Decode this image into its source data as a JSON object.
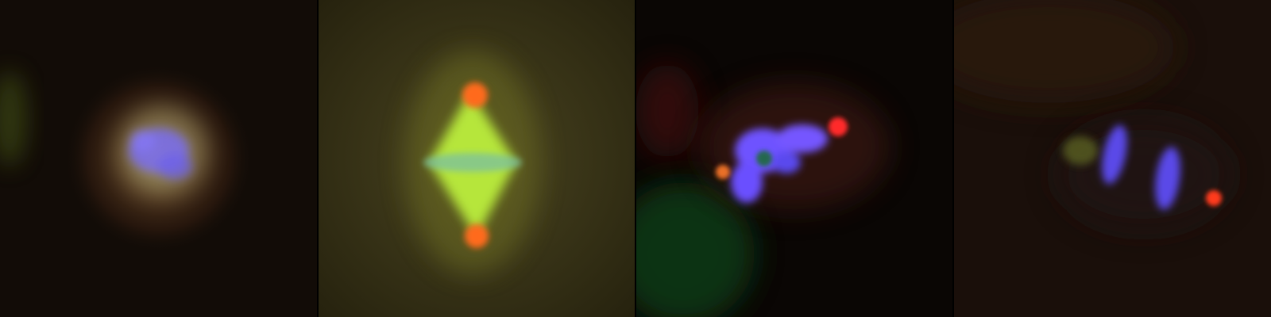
{
  "figure": {
    "panel_count": 4,
    "channels": {
      "dna": "#6a5cff",
      "tubulin": "#b8e23a",
      "centrosome": "#ff3a1e"
    },
    "panels": [
      {
        "id": "panel-1",
        "background": "#120c07"
      },
      {
        "id": "panel-2",
        "background": "#2f2a12"
      },
      {
        "id": "panel-3",
        "background": "#0a0604"
      },
      {
        "id": "panel-4",
        "background": "#1a0f0a"
      }
    ]
  }
}
